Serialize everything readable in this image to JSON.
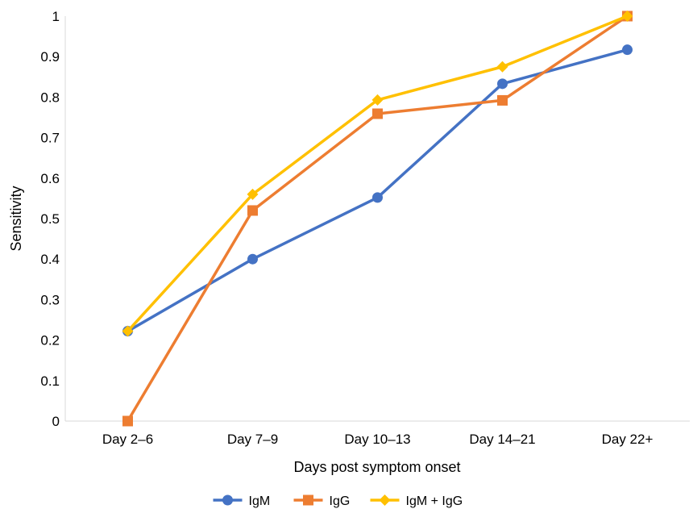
{
  "chart_data": {
    "type": "line",
    "xlabel": "Days post symptom onset",
    "ylabel": "Sensitivity",
    "categories": [
      "Day 2–6",
      "Day 7–9",
      "Day 10–13",
      "Day 14–21",
      "Day 22+"
    ],
    "ylim": [
      0,
      1
    ],
    "yticks": [
      0,
      0.1,
      0.2,
      0.3,
      0.4,
      0.5,
      0.6,
      0.7,
      0.8,
      0.9,
      1
    ],
    "ytick_labels": [
      "0",
      "0.1",
      "0.2",
      "0.3",
      "0.4",
      "0.5",
      "0.6",
      "0.7",
      "0.8",
      "0.9",
      "1"
    ],
    "grid": false,
    "legend_position": "bottom",
    "series": [
      {
        "name": "IgM",
        "color": "#4472C4",
        "marker": "circle",
        "values": [
          0.222,
          0.4,
          0.552,
          0.833,
          0.917
        ]
      },
      {
        "name": "IgG",
        "color": "#ED7D31",
        "marker": "square",
        "values": [
          0.0,
          0.52,
          0.759,
          0.792,
          1.0
        ]
      },
      {
        "name": "IgM + IgG",
        "color": "#FFC000",
        "marker": "diamond",
        "values": [
          0.222,
          0.56,
          0.793,
          0.875,
          1.0
        ]
      }
    ]
  }
}
